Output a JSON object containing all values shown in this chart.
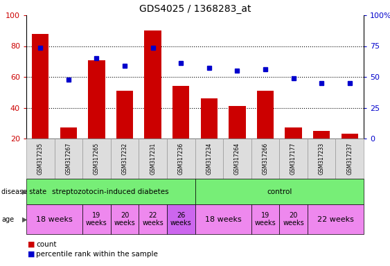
{
  "title": "GDS4025 / 1368283_at",
  "samples": [
    "GSM317235",
    "GSM317267",
    "GSM317265",
    "GSM317232",
    "GSM317231",
    "GSM317236",
    "GSM317234",
    "GSM317264",
    "GSM317266",
    "GSM317177",
    "GSM317233",
    "GSM317237"
  ],
  "counts": [
    88,
    27,
    71,
    51,
    90,
    54,
    46,
    41,
    51,
    27,
    25,
    23
  ],
  "percentiles": [
    79,
    58,
    72,
    67,
    79,
    69,
    66,
    64,
    65,
    59,
    56,
    56
  ],
  "bar_color": "#cc0000",
  "dot_color": "#0000cc",
  "ylim_left": [
    20,
    100
  ],
  "yticks_left": [
    20,
    40,
    60,
    80,
    100
  ],
  "yticks_right": [
    0,
    25,
    50,
    75,
    100
  ],
  "ytick_labels_right": [
    "0",
    "25",
    "50",
    "75",
    "100%"
  ],
  "grid_lines": [
    40,
    60,
    80
  ],
  "disease_states": [
    {
      "label": "streptozotocin-induced diabetes",
      "start": 0,
      "end": 6,
      "color": "#77ee77"
    },
    {
      "label": "control",
      "start": 6,
      "end": 12,
      "color": "#77ee77"
    }
  ],
  "age_groups": [
    {
      "label": "18 weeks",
      "start": 0,
      "end": 2,
      "color": "#ee88ee",
      "fontsize": 8
    },
    {
      "label": "19\nweeks",
      "start": 2,
      "end": 3,
      "color": "#ee88ee",
      "fontsize": 7
    },
    {
      "label": "20\nweeks",
      "start": 3,
      "end": 4,
      "color": "#ee88ee",
      "fontsize": 7
    },
    {
      "label": "22\nweeks",
      "start": 4,
      "end": 5,
      "color": "#ee88ee",
      "fontsize": 7
    },
    {
      "label": "26\nweeks",
      "start": 5,
      "end": 6,
      "color": "#cc66ee",
      "fontsize": 7
    },
    {
      "label": "18 weeks",
      "start": 6,
      "end": 8,
      "color": "#ee88ee",
      "fontsize": 8
    },
    {
      "label": "19\nweeks",
      "start": 8,
      "end": 9,
      "color": "#ee88ee",
      "fontsize": 7
    },
    {
      "label": "20\nweeks",
      "start": 9,
      "end": 10,
      "color": "#ee88ee",
      "fontsize": 7
    },
    {
      "label": "22 weeks",
      "start": 10,
      "end": 12,
      "color": "#ee88ee",
      "fontsize": 8
    }
  ],
  "figsize": [
    5.63,
    3.84
  ],
  "dpi": 100
}
